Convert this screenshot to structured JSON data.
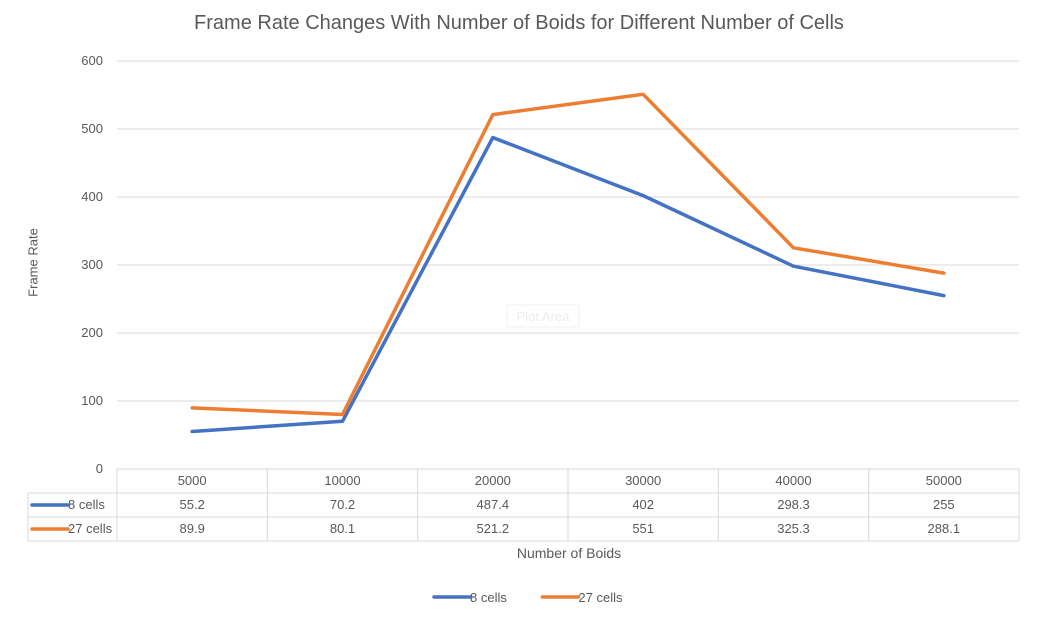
{
  "chart_data": {
    "type": "line",
    "title": "Frame Rate Changes With Number of Boids for Different Number of Cells",
    "xlabel": "Number of Boids",
    "ylabel": "Frame Rate",
    "categories": [
      "5000",
      "10000",
      "20000",
      "30000",
      "40000",
      "50000"
    ],
    "ylim": [
      0,
      600
    ],
    "yticks": [
      0,
      100,
      200,
      300,
      400,
      500,
      600
    ],
    "grid": true,
    "legend_position": "bottom",
    "data_table": true,
    "plot_area_label": "Plot Area",
    "series": [
      {
        "name": "8 cells",
        "color": "#4472C4",
        "values": [
          55.2,
          70.2,
          487.4,
          402,
          298.3,
          255
        ],
        "labels": [
          "55.2",
          "70.2",
          "487.4",
          "402",
          "298.3",
          "255"
        ]
      },
      {
        "name": "27 cells",
        "color": "#ED7D31",
        "values": [
          89.9,
          80.1,
          521.2,
          551,
          325.3,
          288.1
        ],
        "labels": [
          "89.9",
          "80.1",
          "521.2",
          "551",
          "325.3",
          "288.1"
        ]
      }
    ]
  }
}
